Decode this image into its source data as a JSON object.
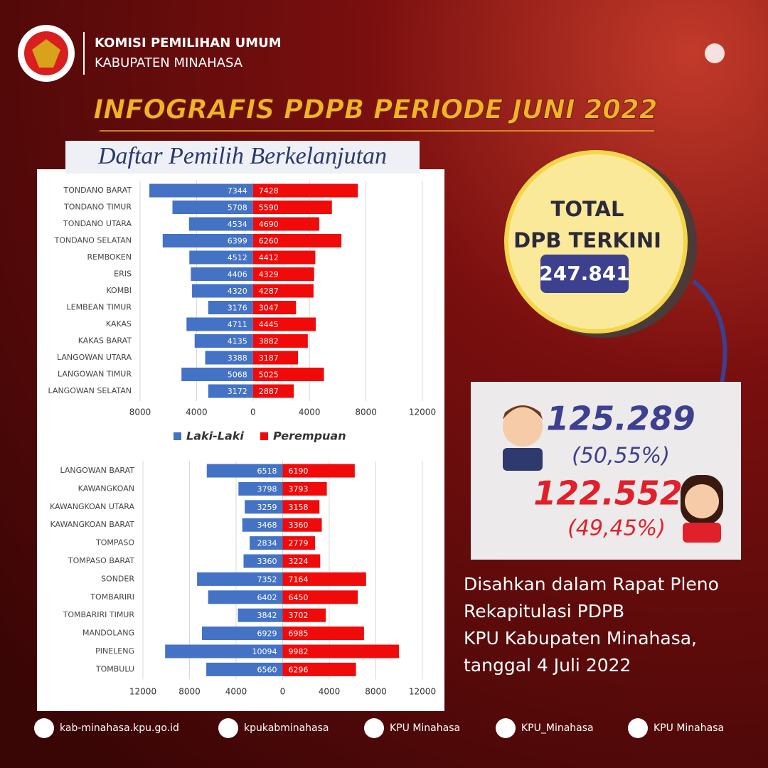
{
  "header": {
    "org": "KOMISI PEMILIHAN UMUM",
    "region": "KABUPATEN MINAHASA"
  },
  "title": "INFOGRAFIS PDPB PERIODE JUNI 2022",
  "subtitle": "Daftar Pemilih Berkelanjutan",
  "chart_data": [
    {
      "type": "bar",
      "orientation": "horizontal",
      "diverging": true,
      "categories": [
        "TONDANO BARAT",
        "TONDANO TIMUR",
        "TONDANO UTARA",
        "TONDANO SELATAN",
        "REMBOKEN",
        "ERIS",
        "KOMBI",
        "LEMBEAN TIMUR",
        "KAKAS",
        "KAKAS BARAT",
        "LANGOWAN UTARA",
        "LANGOWAN TIMUR",
        "LANGOWAN SELATAN"
      ],
      "series": [
        {
          "name": "Laki-Laki",
          "color": "#4472c4",
          "values": [
            7344,
            5708,
            4534,
            6399,
            4512,
            4406,
            4320,
            3176,
            4711,
            4135,
            3388,
            5068,
            3172
          ]
        },
        {
          "name": "Perempuan",
          "color": "#f00a0a",
          "values": [
            7428,
            5590,
            4690,
            6260,
            4412,
            4329,
            4287,
            3047,
            4445,
            3882,
            3187,
            5025,
            2887
          ]
        }
      ],
      "xlim": [
        -8000,
        12000
      ],
      "xticks": [
        {
          "value": -8000,
          "label": "8000"
        },
        {
          "value": -4000,
          "label": "4000"
        },
        0,
        4000,
        8000,
        12000
      ],
      "grid": true,
      "legend": "bottom"
    },
    {
      "type": "bar",
      "orientation": "horizontal",
      "diverging": true,
      "categories": [
        "LANGOWAN BARAT",
        "KAWANGKOAN",
        "KAWANGKOAN UTARA",
        "KAWANGKOAN BARAT",
        "TOMPASO",
        "TOMPASO BARAT",
        "SONDER",
        "TOMBARIRI",
        "TOMBARIRI TIMUR",
        "MANDOLANG",
        "PINELENG",
        "TOMBULU"
      ],
      "series": [
        {
          "color": "#4472c4",
          "values": [
            6518,
            3798,
            3259,
            3468,
            2834,
            3360,
            7352,
            6402,
            3842,
            6929,
            10094,
            6560
          ]
        },
        {
          "color": "#f00a0a",
          "values": [
            6190,
            3793,
            3158,
            3360,
            2779,
            3224,
            7164,
            6450,
            3702,
            6985,
            9982,
            6296
          ]
        }
      ],
      "xlim": [
        -12000,
        12000
      ],
      "xticks": [
        {
          "value": -12000,
          "label": "12000"
        },
        {
          "value": -8000,
          "label": "8000"
        },
        {
          "value": -4000,
          "label": "4000"
        },
        0,
        4000,
        8000,
        12000
      ],
      "grid": true
    }
  ],
  "total": {
    "lines": [
      "TOTAL",
      "DPB TERKINI"
    ],
    "value": "247.841"
  },
  "gender": {
    "male": {
      "count": "125.289",
      "share": "(50,55%)"
    },
    "female": {
      "count": "122.552",
      "share": "(49,45%)"
    }
  },
  "note": [
    "Disahkan dalam Rapat Pleno",
    "Rekapitulasi PDPB",
    "KPU Kabupaten Minahasa,",
    "tanggal 4 Juli 2022"
  ],
  "footer": [
    "kab-minahasa.kpu.go.id",
    "kpukabminahasa",
    "KPU Minahasa",
    "KPU_Minahasa",
    "KPU Minahasa"
  ]
}
